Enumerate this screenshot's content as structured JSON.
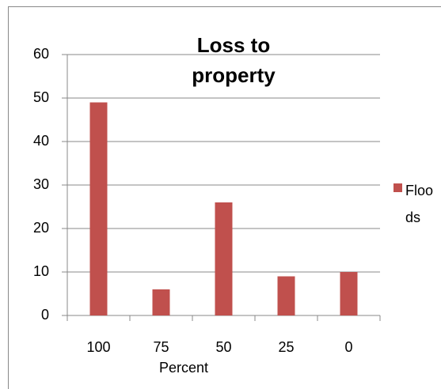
{
  "chart_data": {
    "type": "bar",
    "title": "Loss to property",
    "x_label": "Percent",
    "categories": [
      "100",
      "75",
      "50",
      "25",
      "0"
    ],
    "series": [
      {
        "name": "Floods",
        "color": "#c0504d",
        "values": [
          49,
          6,
          26,
          9,
          10
        ]
      }
    ],
    "ylim": [
      0,
      60
    ],
    "yticks": [
      0,
      10,
      20,
      30,
      40,
      50,
      60
    ],
    "grid": true,
    "legend": "right"
  }
}
